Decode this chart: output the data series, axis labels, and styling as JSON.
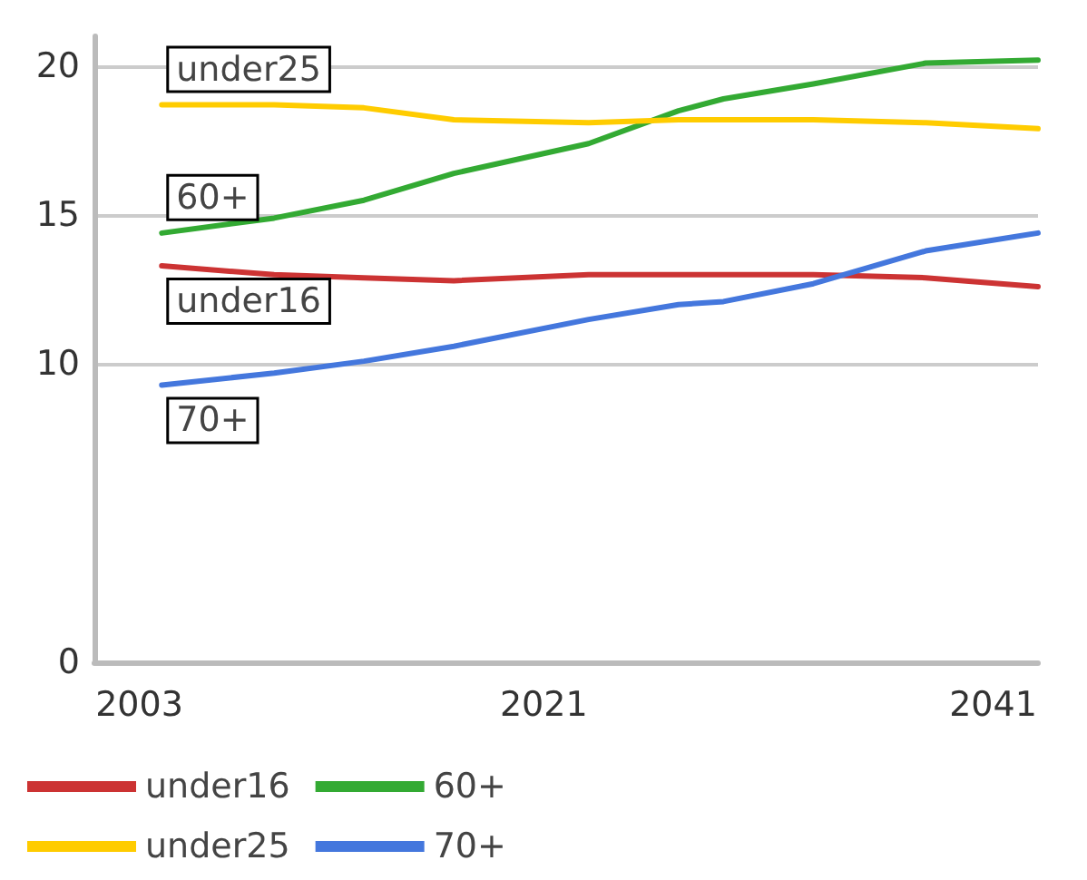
{
  "chart_data": {
    "type": "line",
    "x": [
      2004,
      2009,
      2013,
      2017,
      2023,
      2027,
      2029,
      2033,
      2038,
      2043
    ],
    "series": [
      {
        "name": "under16",
        "color": "#cc3333",
        "values": [
          13.3,
          13.0,
          12.9,
          12.8,
          13.0,
          13.0,
          13.0,
          13.0,
          12.9,
          12.6
        ]
      },
      {
        "name": "60+",
        "color": "#33aa33",
        "values": [
          14.4,
          14.9,
          15.5,
          16.4,
          17.4,
          18.5,
          18.9,
          19.4,
          20.1,
          20.2
        ]
      },
      {
        "name": "under25",
        "color": "#ffcc00",
        "values": [
          18.7,
          18.7,
          18.6,
          18.2,
          18.1,
          18.2,
          18.2,
          18.2,
          18.1,
          17.9
        ]
      },
      {
        "name": "70+",
        "color": "#4477dd",
        "values": [
          9.3,
          9.7,
          10.1,
          10.6,
          11.5,
          12.0,
          12.1,
          12.7,
          13.8,
          14.4
        ]
      }
    ],
    "xlim": [
      2001,
      2043
    ],
    "xticks": [
      2003,
      2021,
      2041
    ],
    "ylim": [
      0,
      21
    ],
    "yticks": [
      0,
      10,
      15,
      20
    ],
    "annotations": [
      "under16",
      "60+",
      "under25",
      "70+"
    ],
    "grid": "y",
    "legend": "bottom",
    "marker": "none",
    "line_style": "solid"
  }
}
